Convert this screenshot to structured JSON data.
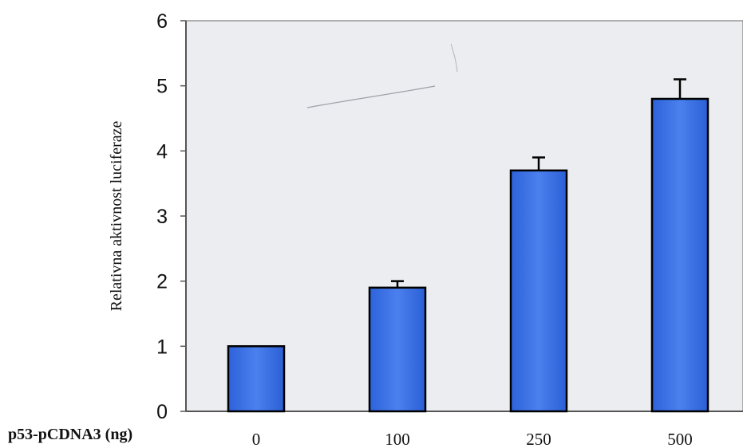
{
  "chart_data": {
    "type": "bar",
    "title": "",
    "xlabel": "p53-pCDNA3 (ng)",
    "ylabel": "Relativna aktivnost luciferaze",
    "categories": [
      "0",
      "100",
      "250",
      "500"
    ],
    "values": [
      1.0,
      1.9,
      3.7,
      4.8
    ],
    "errors": [
      0.0,
      0.1,
      0.2,
      0.3
    ],
    "ylim": [
      0,
      6
    ],
    "yticks": [
      "0",
      "1",
      "2",
      "3",
      "4",
      "5",
      "6"
    ],
    "grid": false,
    "legend": "none",
    "colors": {
      "bar": "#3a6fe0",
      "bar_outline": "#000000",
      "plot_background": "#ecedf0",
      "axis": "#555555"
    }
  }
}
